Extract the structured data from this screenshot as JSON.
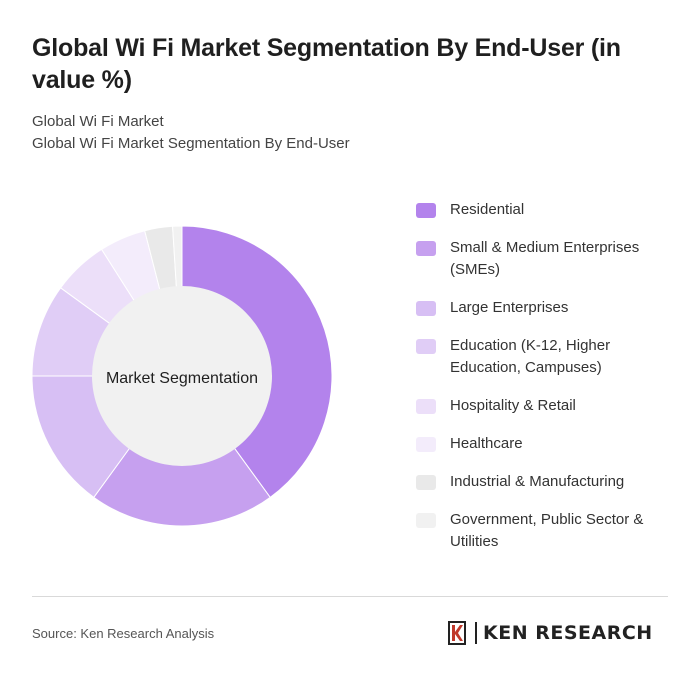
{
  "header": {
    "title": "Global Wi Fi Market Segmentation By End-User (in value %)",
    "subtitle_1": "Global Wi Fi Market",
    "subtitle_2": "Global Wi Fi Market Segmentation By End-User"
  },
  "chart_data": {
    "type": "donut",
    "center_label": "Market Segmentation",
    "categories": [
      "Residential",
      "Small & Medium Enterprises (SMEs)",
      "Large Enterprises",
      "Education (K-12, Higher Education, Campuses)",
      "Hospitality & Retail",
      "Healthcare",
      "Industrial & Manufacturing",
      "Government, Public Sector & Utilities"
    ],
    "values": [
      40,
      20,
      15,
      10,
      6,
      5,
      3,
      1
    ],
    "colors": [
      "#b383ec",
      "#c6a0ef",
      "#d7bff4",
      "#e0cdf6",
      "#ecdff9",
      "#f3ecfb",
      "#e9e9e9",
      "#f1f1f1"
    ],
    "legend_position": "right"
  },
  "footer": {
    "source": "Source: Ken Research Analysis",
    "logo_text": "KEN RESEARCH"
  }
}
